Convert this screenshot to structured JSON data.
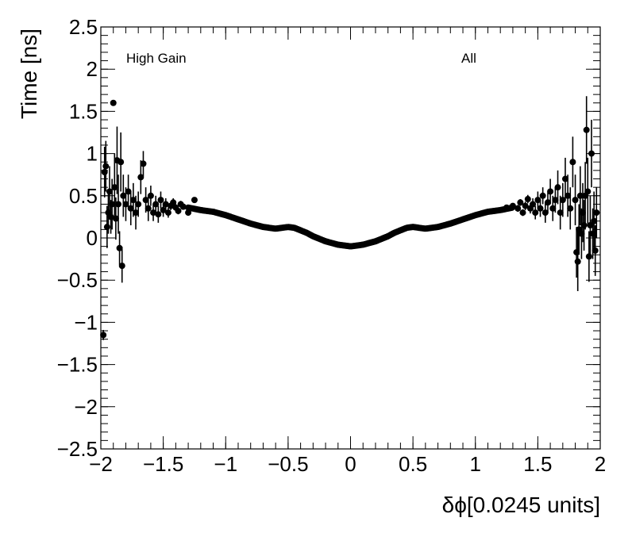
{
  "chart_data": {
    "type": "scatter",
    "title": "",
    "xlabel": "δϕ[0.0245 units]",
    "ylabel": "Time [ns]",
    "xlim": [
      -2,
      2
    ],
    "ylim": [
      -2.5,
      2.5
    ],
    "x_ticks": [
      -2,
      -1.5,
      -1,
      -0.5,
      0,
      0.5,
      1,
      1.5,
      2
    ],
    "x_tick_labels": [
      "−2",
      "−1.5",
      "−1",
      "−0.5",
      "0",
      "0.5",
      "1",
      "1.5",
      "2"
    ],
    "y_ticks": [
      -2.5,
      -2,
      -1.5,
      -1,
      -0.5,
      0,
      0.5,
      1,
      1.5,
      2,
      2.5
    ],
    "y_tick_labels": [
      "−2.5",
      "−2",
      "−1.5",
      "−1",
      "−0.5",
      "0",
      "0.5",
      "1",
      "1.5",
      "2",
      "2.5"
    ],
    "grid": false,
    "legend": "none",
    "annotations": [
      "High Gain",
      "All"
    ],
    "marker_color": "#000000",
    "profile": {
      "x": [
        -1.3,
        -1.2,
        -1.1,
        -1.0,
        -0.9,
        -0.8,
        -0.7,
        -0.6,
        -0.55,
        -0.5,
        -0.45,
        -0.4,
        -0.35,
        -0.3,
        -0.2,
        -0.1,
        0.0,
        0.1,
        0.2,
        0.3,
        0.35,
        0.4,
        0.45,
        0.5,
        0.55,
        0.6,
        0.7,
        0.8,
        0.9,
        1.0,
        1.1,
        1.2,
        1.3
      ],
      "y": [
        0.36,
        0.33,
        0.31,
        0.27,
        0.22,
        0.17,
        0.13,
        0.11,
        0.12,
        0.13,
        0.12,
        0.09,
        0.06,
        0.02,
        -0.04,
        -0.08,
        -0.1,
        -0.08,
        -0.04,
        0.02,
        0.06,
        0.09,
        0.12,
        0.13,
        0.12,
        0.11,
        0.13,
        0.17,
        0.22,
        0.27,
        0.31,
        0.33,
        0.36
      ]
    },
    "outer_points": [
      {
        "x": -1.98,
        "y": -1.15,
        "err": 0.06
      },
      {
        "x": -1.97,
        "y": 0.78,
        "err": 0.3
      },
      {
        "x": -1.96,
        "y": 0.85,
        "err": 0.3
      },
      {
        "x": -1.95,
        "y": 0.13,
        "err": 0.25
      },
      {
        "x": -1.94,
        "y": 0.3,
        "err": 0.25
      },
      {
        "x": -1.93,
        "y": 0.55,
        "err": 0.3
      },
      {
        "x": -1.92,
        "y": 0.25,
        "err": 0.2
      },
      {
        "x": -1.91,
        "y": 0.4,
        "err": 0.3
      },
      {
        "x": -1.9,
        "y": 1.6,
        "err": 0.02
      },
      {
        "x": -1.89,
        "y": 0.6,
        "err": 0.4
      },
      {
        "x": -1.88,
        "y": 0.23,
        "err": 0.25
      },
      {
        "x": -1.87,
        "y": 0.92,
        "err": 0.4
      },
      {
        "x": -1.86,
        "y": 0.4,
        "err": 0.35
      },
      {
        "x": -1.85,
        "y": -0.12,
        "err": 0.2
      },
      {
        "x": -1.84,
        "y": 0.9,
        "err": 0.35
      },
      {
        "x": -1.83,
        "y": -0.33,
        "err": 0.2
      },
      {
        "x": -1.82,
        "y": 0.5,
        "err": 0.25
      },
      {
        "x": -1.8,
        "y": 0.4,
        "err": 0.2
      },
      {
        "x": -1.78,
        "y": 0.55,
        "err": 0.2
      },
      {
        "x": -1.76,
        "y": 0.35,
        "err": 0.2
      },
      {
        "x": -1.74,
        "y": 0.45,
        "err": 0.2
      },
      {
        "x": -1.72,
        "y": 0.3,
        "err": 0.2
      },
      {
        "x": -1.7,
        "y": 0.4,
        "err": 0.15
      },
      {
        "x": -1.68,
        "y": 0.72,
        "err": 0.2
      },
      {
        "x": -1.66,
        "y": 0.88,
        "err": 0.15
      },
      {
        "x": -1.64,
        "y": 0.45,
        "err": 0.15
      },
      {
        "x": -1.62,
        "y": 0.35,
        "err": 0.15
      },
      {
        "x": -1.6,
        "y": 0.5,
        "err": 0.12
      },
      {
        "x": -1.58,
        "y": 0.3,
        "err": 0.1
      },
      {
        "x": -1.56,
        "y": 0.4,
        "err": 0.1
      },
      {
        "x": -1.54,
        "y": 0.28,
        "err": 0.1
      },
      {
        "x": -1.52,
        "y": 0.45,
        "err": 0.1
      },
      {
        "x": -1.5,
        "y": 0.33,
        "err": 0.08
      },
      {
        "x": -1.48,
        "y": 0.4,
        "err": 0.07
      },
      {
        "x": -1.46,
        "y": 0.3,
        "err": 0.06
      },
      {
        "x": -1.44,
        "y": 0.38,
        "err": 0.05
      },
      {
        "x": -1.42,
        "y": 0.42,
        "err": 0.05
      },
      {
        "x": -1.4,
        "y": 0.36,
        "err": 0.04
      },
      {
        "x": -1.38,
        "y": 0.32,
        "err": 0.04
      },
      {
        "x": -1.36,
        "y": 0.4,
        "err": 0.04
      },
      {
        "x": -1.34,
        "y": 0.37,
        "err": 0.03
      },
      {
        "x": -1.3,
        "y": 0.3,
        "err": 0.03
      },
      {
        "x": -1.25,
        "y": 0.45,
        "err": 0.03
      },
      {
        "x": 1.25,
        "y": 0.36,
        "err": 0.03
      },
      {
        "x": 1.3,
        "y": 0.38,
        "err": 0.03
      },
      {
        "x": 1.34,
        "y": 0.35,
        "err": 0.04
      },
      {
        "x": 1.36,
        "y": 0.42,
        "err": 0.04
      },
      {
        "x": 1.38,
        "y": 0.3,
        "err": 0.04
      },
      {
        "x": 1.4,
        "y": 0.38,
        "err": 0.05
      },
      {
        "x": 1.42,
        "y": 0.46,
        "err": 0.05
      },
      {
        "x": 1.44,
        "y": 0.35,
        "err": 0.06
      },
      {
        "x": 1.46,
        "y": 0.4,
        "err": 0.07
      },
      {
        "x": 1.48,
        "y": 0.3,
        "err": 0.08
      },
      {
        "x": 1.5,
        "y": 0.45,
        "err": 0.1
      },
      {
        "x": 1.52,
        "y": 0.35,
        "err": 0.1
      },
      {
        "x": 1.54,
        "y": 0.5,
        "err": 0.1
      },
      {
        "x": 1.56,
        "y": 0.3,
        "err": 0.12
      },
      {
        "x": 1.58,
        "y": 0.42,
        "err": 0.12
      },
      {
        "x": 1.6,
        "y": 0.55,
        "err": 0.15
      },
      {
        "x": 1.62,
        "y": 0.35,
        "err": 0.15
      },
      {
        "x": 1.64,
        "y": 0.45,
        "err": 0.15
      },
      {
        "x": 1.66,
        "y": 0.6,
        "err": 0.2
      },
      {
        "x": 1.68,
        "y": 0.3,
        "err": 0.2
      },
      {
        "x": 1.7,
        "y": 0.45,
        "err": 0.2
      },
      {
        "x": 1.72,
        "y": 0.7,
        "err": 0.25
      },
      {
        "x": 1.74,
        "y": 0.5,
        "err": 0.25
      },
      {
        "x": 1.76,
        "y": 0.35,
        "err": 0.25
      },
      {
        "x": 1.78,
        "y": 0.9,
        "err": 0.3
      },
      {
        "x": 1.8,
        "y": 0.45,
        "err": 0.3
      },
      {
        "x": 1.81,
        "y": -0.17,
        "err": 0.3
      },
      {
        "x": 1.82,
        "y": -0.28,
        "err": 0.35
      },
      {
        "x": 1.83,
        "y": 0.1,
        "err": 0.3
      },
      {
        "x": 1.84,
        "y": 0.5,
        "err": 0.35
      },
      {
        "x": 1.85,
        "y": 0.05,
        "err": 0.3
      },
      {
        "x": 1.86,
        "y": 0.3,
        "err": 0.35
      },
      {
        "x": 1.87,
        "y": 0.15,
        "err": 0.3
      },
      {
        "x": 1.88,
        "y": 0.5,
        "err": 0.4
      },
      {
        "x": 1.89,
        "y": 1.28,
        "err": 0.4
      },
      {
        "x": 1.9,
        "y": 0.55,
        "err": 0.4
      },
      {
        "x": 1.91,
        "y": -0.22,
        "err": 0.3
      },
      {
        "x": 1.92,
        "y": 0.15,
        "err": 0.35
      },
      {
        "x": 1.93,
        "y": 1.0,
        "err": 0.4
      },
      {
        "x": 1.94,
        "y": 0.05,
        "err": 0.3
      },
      {
        "x": 1.95,
        "y": 0.2,
        "err": 0.35
      },
      {
        "x": 1.96,
        "y": -0.15,
        "err": 0.3
      },
      {
        "x": 1.97,
        "y": 0.3,
        "err": 0.3
      }
    ]
  }
}
